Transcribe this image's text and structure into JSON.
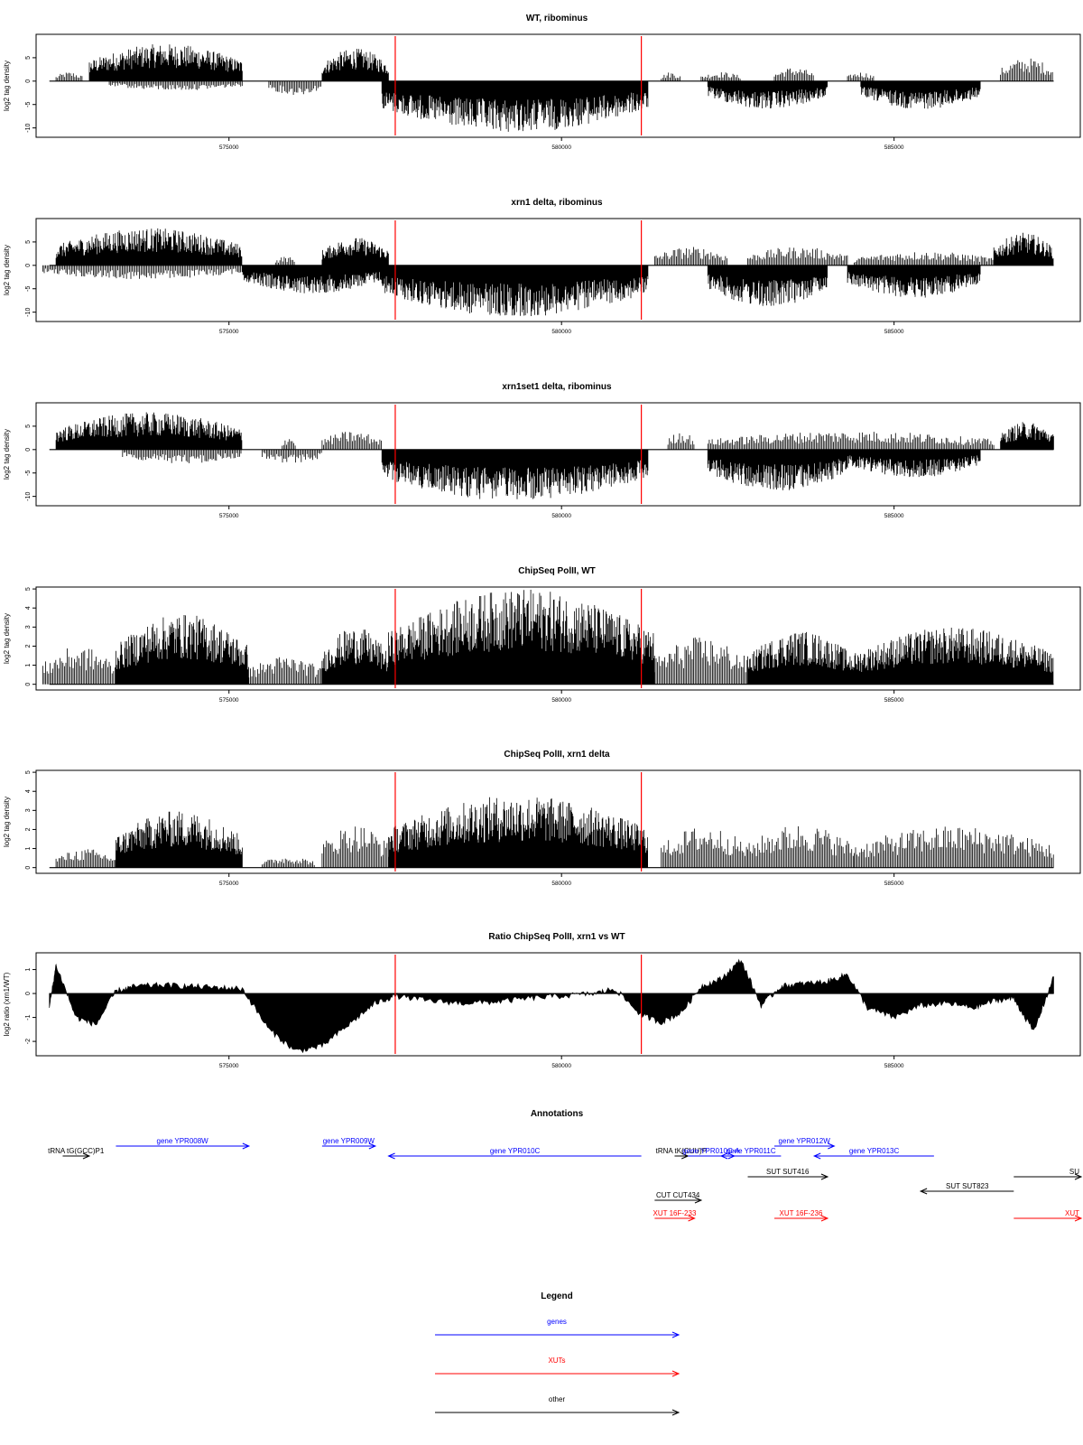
{
  "colors": {
    "gene": "#0000ff",
    "xut": "#ff0000",
    "other": "#000000",
    "marker": "#ff0000",
    "bars": "#000000"
  },
  "markers": [
    577500,
    581200
  ],
  "chart_data": [
    {
      "type": "bar",
      "title": "WT, ribominus",
      "ylabel": "log2 tag density",
      "xlim": [
        572100,
        587800
      ],
      "ylim": [
        -12,
        10
      ],
      "yticks": [
        -10,
        -5,
        0,
        5
      ],
      "xticks": [
        575000,
        580000,
        585000
      ],
      "grid": false,
      "top_regions": [
        {
          "start": 572400,
          "end": 572800,
          "peak": 2
        },
        {
          "start": 572900,
          "end": 575200,
          "peak": 8
        },
        {
          "start": 576400,
          "end": 577400,
          "peak": 7
        },
        {
          "start": 581500,
          "end": 581800,
          "peak": 2
        },
        {
          "start": 582100,
          "end": 582700,
          "peak": 2
        },
        {
          "start": 583200,
          "end": 583800,
          "peak": 3
        },
        {
          "start": 584300,
          "end": 584700,
          "peak": 2
        },
        {
          "start": 586600,
          "end": 587400,
          "peak": 5
        }
      ],
      "bottom_regions": [
        {
          "start": 573200,
          "end": 575200,
          "peak": -2
        },
        {
          "start": 575600,
          "end": 576400,
          "peak": -3
        },
        {
          "start": 577300,
          "end": 581300,
          "peak": -11
        },
        {
          "start": 582200,
          "end": 584000,
          "peak": -6
        },
        {
          "start": 584500,
          "end": 586300,
          "peak": -6
        }
      ]
    },
    {
      "type": "bar",
      "title": "xrn1 delta, ribominus",
      "ylabel": "log2 tag density",
      "xlim": [
        572100,
        587800
      ],
      "ylim": [
        -12,
        10
      ],
      "yticks": [
        -10,
        -5,
        0,
        5
      ],
      "xticks": [
        575000,
        580000,
        585000
      ],
      "grid": false,
      "top_regions": [
        {
          "start": 572400,
          "end": 575200,
          "peak": 8
        },
        {
          "start": 575700,
          "end": 576000,
          "peak": 2
        },
        {
          "start": 576400,
          "end": 577400,
          "peak": 6
        },
        {
          "start": 581400,
          "end": 582500,
          "peak": 4
        },
        {
          "start": 582800,
          "end": 584300,
          "peak": 4
        },
        {
          "start": 584400,
          "end": 586500,
          "peak": 3
        },
        {
          "start": 586500,
          "end": 587400,
          "peak": 7
        }
      ],
      "bottom_regions": [
        {
          "start": 572200,
          "end": 575200,
          "peak": -3
        },
        {
          "start": 575200,
          "end": 577300,
          "peak": -6
        },
        {
          "start": 577300,
          "end": 581300,
          "peak": -11
        },
        {
          "start": 582200,
          "end": 584000,
          "peak": -9
        },
        {
          "start": 584300,
          "end": 586300,
          "peak": -7
        }
      ]
    },
    {
      "type": "bar",
      "title": "xrn1set1 delta, ribominus",
      "ylabel": "log2 tag density",
      "xlim": [
        572100,
        587800
      ],
      "ylim": [
        -12,
        10
      ],
      "yticks": [
        -10,
        -5,
        0,
        5
      ],
      "xticks": [
        575000,
        580000,
        585000
      ],
      "grid": false,
      "top_regions": [
        {
          "start": 572400,
          "end": 575200,
          "peak": 8
        },
        {
          "start": 575800,
          "end": 576000,
          "peak": 3
        },
        {
          "start": 576400,
          "end": 577300,
          "peak": 4
        },
        {
          "start": 581600,
          "end": 582000,
          "peak": 4
        },
        {
          "start": 582200,
          "end": 586500,
          "peak": 4
        },
        {
          "start": 586600,
          "end": 587400,
          "peak": 6
        }
      ],
      "bottom_regions": [
        {
          "start": 573400,
          "end": 575200,
          "peak": -3
        },
        {
          "start": 575500,
          "end": 576400,
          "peak": -3
        },
        {
          "start": 577300,
          "end": 581300,
          "peak": -11
        },
        {
          "start": 582200,
          "end": 584300,
          "peak": -9
        },
        {
          "start": 584300,
          "end": 586300,
          "peak": -6
        }
      ]
    },
    {
      "type": "bar",
      "title": "ChipSeq PolII, WT",
      "ylabel": "log2 tag density",
      "xlim": [
        572100,
        587800
      ],
      "ylim": [
        -0.3,
        5.1
      ],
      "yticks": [
        0,
        1,
        2,
        3,
        4,
        5
      ],
      "xticks": [
        575000,
        580000,
        585000
      ],
      "grid": false,
      "top_regions": [
        {
          "start": 572200,
          "end": 573300,
          "peak": 2
        },
        {
          "start": 573300,
          "end": 575300,
          "peak": 3.7
        },
        {
          "start": 575300,
          "end": 576400,
          "peak": 1.5
        },
        {
          "start": 576400,
          "end": 577400,
          "peak": 3
        },
        {
          "start": 577400,
          "end": 581400,
          "peak": 5
        },
        {
          "start": 581400,
          "end": 582800,
          "peak": 2.5
        },
        {
          "start": 582800,
          "end": 584400,
          "peak": 2.8
        },
        {
          "start": 584400,
          "end": 587400,
          "peak": 3
        }
      ],
      "bottom_regions": []
    },
    {
      "type": "bar",
      "title": "ChipSeq PolII, xrn1 delta",
      "ylabel": "log2 tag density",
      "xlim": [
        572100,
        587800
      ],
      "ylim": [
        -0.3,
        5.1
      ],
      "yticks": [
        0,
        1,
        2,
        3,
        4,
        5
      ],
      "xticks": [
        575000,
        580000,
        585000
      ],
      "grid": false,
      "top_regions": [
        {
          "start": 572400,
          "end": 573300,
          "peak": 1
        },
        {
          "start": 573300,
          "end": 575200,
          "peak": 3
        },
        {
          "start": 575500,
          "end": 576300,
          "peak": 0.6
        },
        {
          "start": 576400,
          "end": 577400,
          "peak": 2.3
        },
        {
          "start": 577400,
          "end": 581300,
          "peak": 3.8
        },
        {
          "start": 581500,
          "end": 582800,
          "peak": 2.2
        },
        {
          "start": 582800,
          "end": 584400,
          "peak": 2.3
        },
        {
          "start": 584400,
          "end": 587400,
          "peak": 2.2
        }
      ],
      "bottom_regions": []
    },
    {
      "type": "area",
      "title": "Ratio ChipSeq PolII, xrn1 vs WT",
      "ylabel": "log2 ratio (xrn1/WT)",
      "xlim": [
        572100,
        587800
      ],
      "ylim": [
        -2.6,
        1.7
      ],
      "yticks": [
        -2,
        -1,
        0,
        1
      ],
      "xticks": [
        575000,
        580000,
        585000
      ],
      "grid": false,
      "x": [
        572300,
        572400,
        572700,
        573000,
        573300,
        573600,
        574000,
        574400,
        574800,
        575200,
        575600,
        576000,
        576400,
        576800,
        577200,
        577500,
        578000,
        578500,
        579000,
        579500,
        580000,
        580500,
        580800,
        581200,
        581500,
        581800,
        582100,
        582400,
        582700,
        583000,
        583300,
        583600,
        584000,
        584300,
        584600,
        585000,
        585400,
        585800,
        586200,
        586500,
        586800,
        587100,
        587400
      ],
      "y": [
        -0.6,
        1.2,
        -1.0,
        -1.3,
        0.1,
        0.3,
        0.35,
        0.3,
        0.25,
        0.2,
        -1.5,
        -2.4,
        -2.2,
        -1.3,
        -0.4,
        -0.1,
        -0.3,
        -0.4,
        -0.35,
        -0.2,
        -0.1,
        0.0,
        0.2,
        -0.9,
        -1.2,
        -0.8,
        0.3,
        0.6,
        1.4,
        -0.5,
        0.3,
        0.4,
        0.5,
        0.8,
        -0.6,
        -1.0,
        -0.5,
        -0.4,
        -0.6,
        -0.3,
        -0.2,
        -1.6,
        0.7
      ]
    }
  ],
  "annotations": {
    "title": "Annotations",
    "items": [
      {
        "label": "tRNA tG(GCC)P1",
        "kind": "other",
        "start": 572500,
        "end": 572900,
        "dir": 1,
        "row": 1
      },
      {
        "label": "gene YPR008W",
        "kind": "gene",
        "start": 573300,
        "end": 575300,
        "dir": 1,
        "row": 0
      },
      {
        "label": "gene YPR009W",
        "kind": "gene",
        "start": 576400,
        "end": 577200,
        "dir": 1,
        "row": 0
      },
      {
        "label": "gene YPR010C",
        "kind": "gene",
        "start": 577400,
        "end": 581200,
        "dir": -1,
        "row": 1
      },
      {
        "label": "tRNA tK(CUU)P",
        "kind": "other",
        "start": 581700,
        "end": 581900,
        "dir": 1,
        "row": 1
      },
      {
        "label": "gene YPR010C-A",
        "kind": "gene",
        "start": 581900,
        "end": 582600,
        "dir": 1,
        "row": 1
      },
      {
        "label": "gene YPR011C",
        "kind": "gene",
        "start": 582400,
        "end": 583300,
        "dir": -1,
        "row": 1
      },
      {
        "label": "gene YPR012W",
        "kind": "gene",
        "start": 583200,
        "end": 584100,
        "dir": 1,
        "row": 0
      },
      {
        "label": "gene YPR013C",
        "kind": "gene",
        "start": 583800,
        "end": 585600,
        "dir": -1,
        "row": 1
      },
      {
        "label": "SUT SUT416",
        "kind": "other",
        "start": 582800,
        "end": 584000,
        "dir": 1,
        "row": 2
      },
      {
        "label": "SUT SUT823",
        "kind": "other",
        "start": 585400,
        "end": 586800,
        "dir": -1,
        "row": 3
      },
      {
        "label": "SU",
        "kind": "other",
        "start": 586800,
        "end": 587900,
        "dir": 1,
        "row": 2
      },
      {
        "label": "CUT CUT434",
        "kind": "other",
        "start": 581400,
        "end": 582100,
        "dir": 1,
        "row": 4
      },
      {
        "label": "XUT 16F-233",
        "kind": "xut",
        "start": 581400,
        "end": 582000,
        "dir": 1,
        "row": 5
      },
      {
        "label": "XUT 16F-236",
        "kind": "xut",
        "start": 583200,
        "end": 584000,
        "dir": 1,
        "row": 5
      },
      {
        "label": "XUT",
        "kind": "xut",
        "start": 586800,
        "end": 587900,
        "dir": 1,
        "row": 5
      }
    ]
  },
  "legend": {
    "title": "Legend",
    "entries": [
      {
        "label": "genes",
        "kind": "gene"
      },
      {
        "label": "XUTs",
        "kind": "xut"
      },
      {
        "label": "other",
        "kind": "other"
      }
    ]
  }
}
